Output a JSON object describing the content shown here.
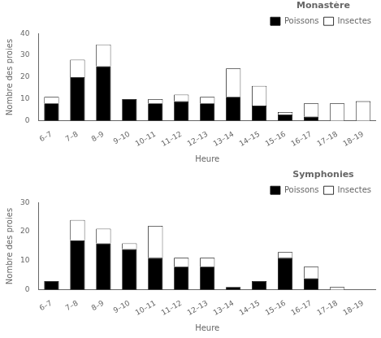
{
  "chart_data": [
    {
      "type": "bar",
      "title": "Monastère",
      "stacked": true,
      "legend": "upper right",
      "grid": false,
      "xlabel": "Heure",
      "ylabel": "Nombre des proies",
      "categories": [
        "6–7",
        "7–8",
        "8–9",
        "9–10",
        "10–11",
        "11–12",
        "12–13",
        "13–14",
        "14–15",
        "15–16",
        "16–17",
        "17–18",
        "18–19"
      ],
      "series": [
        {
          "name": "Poissons",
          "color": "#000000",
          "values": [
            8,
            20,
            25,
            10,
            8,
            9,
            8,
            11,
            7,
            3,
            2,
            0,
            0
          ]
        },
        {
          "name": "Insectes",
          "color": "#ffffff",
          "values": [
            3,
            8,
            10,
            0,
            2,
            3,
            3,
            13,
            9,
            1,
            6,
            8,
            9
          ]
        }
      ],
      "ylim": [
        0,
        40
      ],
      "yticks": [
        0,
        10,
        20,
        30,
        40
      ]
    },
    {
      "type": "bar",
      "title": "Symphonies",
      "stacked": true,
      "legend": "upper right",
      "grid": false,
      "xlabel": "Heure",
      "ylabel": "Nombre des proies",
      "categories": [
        "6–7",
        "7–8",
        "8–9",
        "9–10",
        "10–11",
        "11–12",
        "12–13",
        "13–14",
        "14–15",
        "15–16",
        "16–17",
        "17–18",
        "18–19"
      ],
      "series": [
        {
          "name": "Poissons",
          "color": "#000000",
          "values": [
            3,
            17,
            16,
            14,
            11,
            8,
            8,
            1,
            3,
            11,
            4,
            0,
            0
          ]
        },
        {
          "name": "Insectes",
          "color": "#ffffff",
          "values": [
            0,
            7,
            5,
            2,
            11,
            3,
            3,
            0,
            0,
            2,
            4,
            1,
            0
          ]
        }
      ],
      "ylim": [
        0,
        30
      ],
      "yticks": [
        0,
        10,
        20,
        30
      ]
    }
  ]
}
